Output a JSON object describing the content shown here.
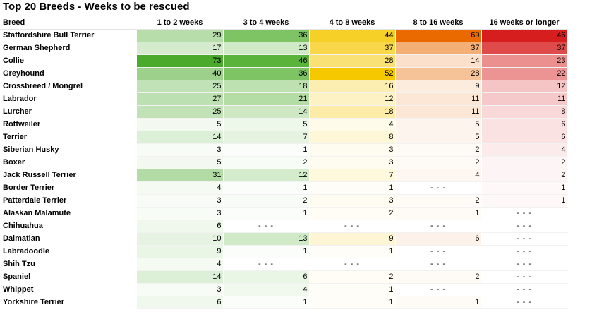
{
  "title": "Top 20 Breeds - Weeks to be rescued",
  "chart_data": {
    "type": "table",
    "title": "Top 20 Breeds - Weeks to be rescued",
    "columns": [
      "Breed",
      "1 to 2 weeks",
      "3 to 4 weeks",
      "4 to 8 weeks",
      "8 to 16 weeks",
      "16 weeks or longer"
    ],
    "missing_marker": "- - -",
    "rows": [
      {
        "breed": "Staffordshire Bull Terrier",
        "values": [
          29,
          36,
          44,
          69,
          46
        ]
      },
      {
        "breed": "German Shepherd",
        "values": [
          17,
          13,
          37,
          37,
          37
        ]
      },
      {
        "breed": "Collie",
        "values": [
          73,
          46,
          28,
          14,
          23
        ]
      },
      {
        "breed": "Greyhound",
        "values": [
          40,
          36,
          52,
          28,
          22
        ]
      },
      {
        "breed": "Crossbreed / Mongrel",
        "values": [
          25,
          18,
          16,
          9,
          12
        ]
      },
      {
        "breed": "Labrador",
        "values": [
          27,
          21,
          12,
          11,
          11
        ]
      },
      {
        "breed": "Lurcher",
        "values": [
          25,
          14,
          18,
          11,
          8
        ]
      },
      {
        "breed": "Rottweiler",
        "values": [
          5,
          5,
          4,
          5,
          6
        ]
      },
      {
        "breed": "Terrier",
        "values": [
          14,
          7,
          8,
          5,
          6
        ]
      },
      {
        "breed": "Siberian Husky",
        "values": [
          3,
          1,
          3,
          2,
          4
        ]
      },
      {
        "breed": "Boxer",
        "values": [
          5,
          2,
          3,
          2,
          2
        ]
      },
      {
        "breed": "Jack Russell Terrier",
        "values": [
          31,
          12,
          7,
          4,
          2
        ]
      },
      {
        "breed": "Border Terrier",
        "values": [
          4,
          1,
          1,
          null,
          1
        ]
      },
      {
        "breed": "Patterdale Terrier",
        "values": [
          3,
          2,
          3,
          2,
          1
        ]
      },
      {
        "breed": "Alaskan Malamute",
        "values": [
          3,
          1,
          2,
          1,
          null
        ]
      },
      {
        "breed": "Chihuahua",
        "values": [
          6,
          null,
          null,
          null,
          null
        ]
      },
      {
        "breed": "Dalmatian",
        "values": [
          10,
          13,
          9,
          6,
          null
        ]
      },
      {
        "breed": "Labradoodle",
        "values": [
          9,
          1,
          1,
          null,
          null
        ]
      },
      {
        "breed": "Shih Tzu",
        "values": [
          4,
          null,
          null,
          null,
          null
        ]
      },
      {
        "breed": "Spaniel",
        "values": [
          14,
          6,
          2,
          2,
          null
        ]
      },
      {
        "breed": "Whippet",
        "values": [
          3,
          4,
          1,
          null,
          null
        ]
      },
      {
        "breed": "Yorkshire Terrier",
        "values": [
          6,
          1,
          1,
          1,
          null
        ]
      }
    ],
    "color_scales": [
      {
        "low": "#ffffff",
        "high": "#4aaa2c",
        "max": 73
      },
      {
        "low": "#ffffff",
        "high": "#5ab33a",
        "max": 46
      },
      {
        "low": "#ffffff",
        "high": "#f5c800",
        "max": 52
      },
      {
        "low": "#ffffff",
        "high": "#ea6a00",
        "max": 69
      },
      {
        "low": "#ffffff",
        "high": "#d71e1e",
        "max": 46
      }
    ]
  }
}
